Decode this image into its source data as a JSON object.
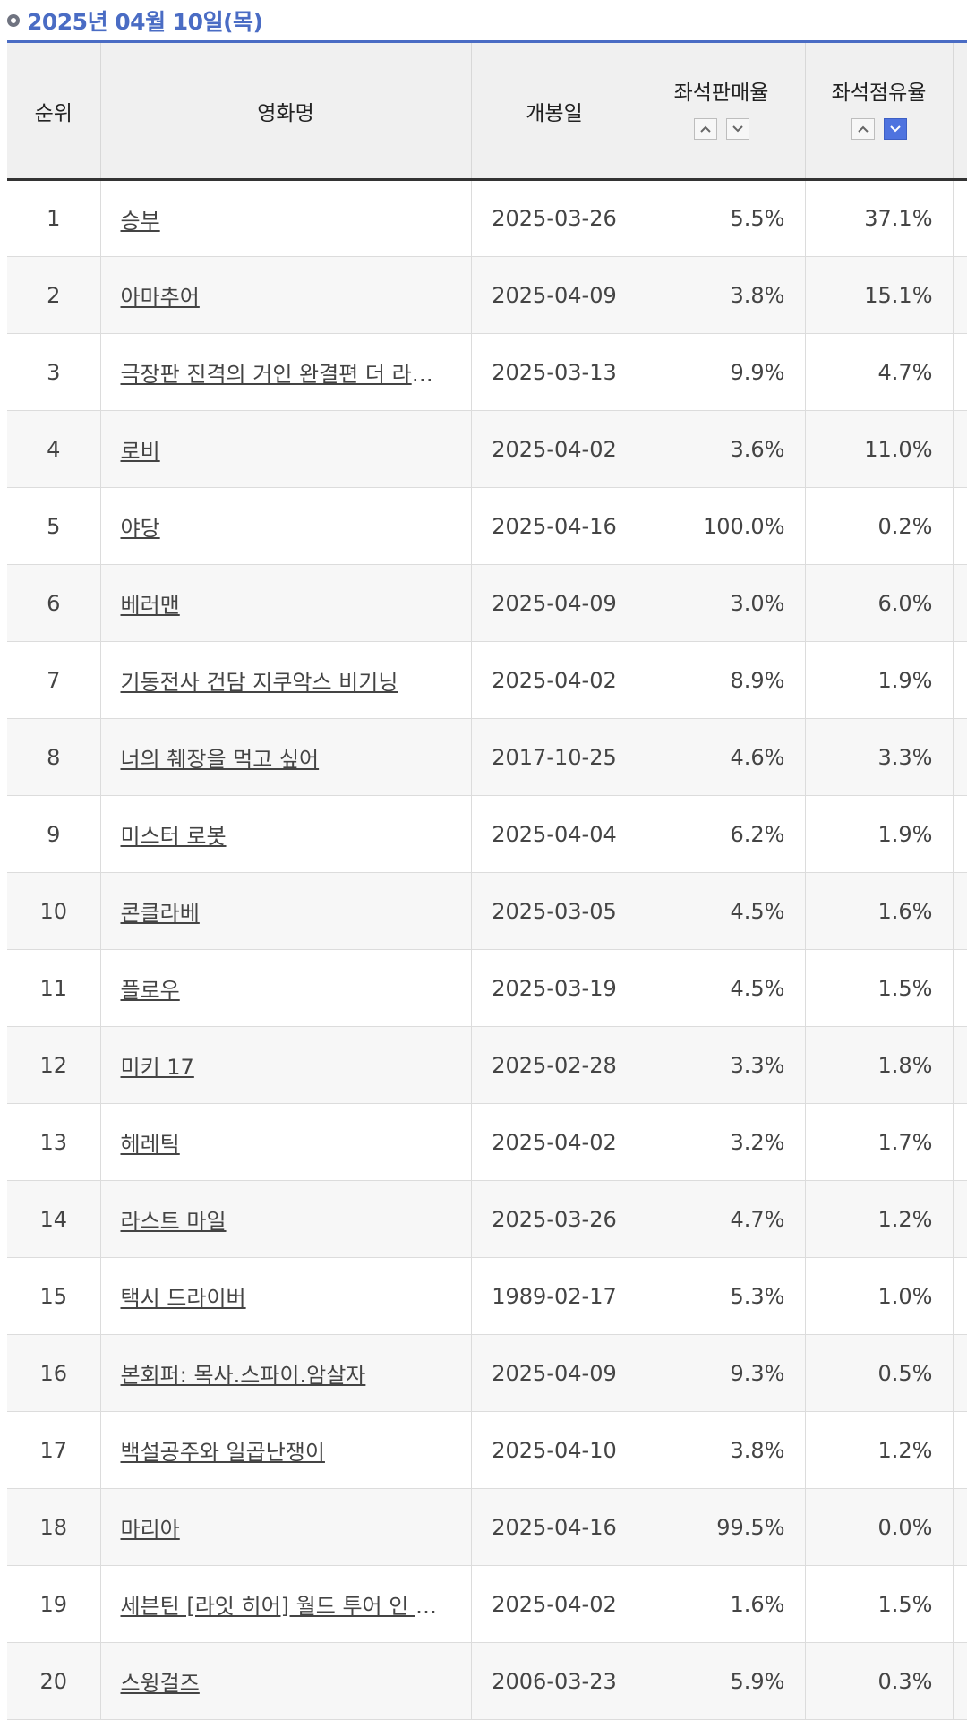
{
  "header": {
    "date_label": "2025년 04월 10일(목)"
  },
  "table": {
    "columns": {
      "rank": "순위",
      "title": "영화명",
      "open_date": "개봉일",
      "sales_rate": "좌석판매율",
      "share_rate": "좌석점유율"
    },
    "rows": [
      {
        "rank": "1",
        "title": "승부",
        "open_date": "2025-03-26",
        "sales_rate": "5.5%",
        "share_rate": "37.1%"
      },
      {
        "rank": "2",
        "title": "아마추어",
        "open_date": "2025-04-09",
        "sales_rate": "3.8%",
        "share_rate": "15.1%"
      },
      {
        "rank": "3",
        "title": "극장판 진격의 거인 완결편 더 라스…",
        "open_date": "2025-03-13",
        "sales_rate": "9.9%",
        "share_rate": "4.7%"
      },
      {
        "rank": "4",
        "title": "로비",
        "open_date": "2025-04-02",
        "sales_rate": "3.6%",
        "share_rate": "11.0%"
      },
      {
        "rank": "5",
        "title": "야당",
        "open_date": "2025-04-16",
        "sales_rate": "100.0%",
        "share_rate": "0.2%"
      },
      {
        "rank": "6",
        "title": "베러맨",
        "open_date": "2025-04-09",
        "sales_rate": "3.0%",
        "share_rate": "6.0%"
      },
      {
        "rank": "7",
        "title": "기동전사 건담 지쿠악스 비기닝",
        "open_date": "2025-04-02",
        "sales_rate": "8.9%",
        "share_rate": "1.9%"
      },
      {
        "rank": "8",
        "title": "너의 췌장을 먹고 싶어",
        "open_date": "2017-10-25",
        "sales_rate": "4.6%",
        "share_rate": "3.3%"
      },
      {
        "rank": "9",
        "title": "미스터 로봇",
        "open_date": "2025-04-04",
        "sales_rate": "6.2%",
        "share_rate": "1.9%"
      },
      {
        "rank": "10",
        "title": "콘클라베",
        "open_date": "2025-03-05",
        "sales_rate": "4.5%",
        "share_rate": "1.6%"
      },
      {
        "rank": "11",
        "title": "플로우",
        "open_date": "2025-03-19",
        "sales_rate": "4.5%",
        "share_rate": "1.5%"
      },
      {
        "rank": "12",
        "title": "미키 17",
        "open_date": "2025-02-28",
        "sales_rate": "3.3%",
        "share_rate": "1.8%"
      },
      {
        "rank": "13",
        "title": "헤레틱",
        "open_date": "2025-04-02",
        "sales_rate": "3.2%",
        "share_rate": "1.7%"
      },
      {
        "rank": "14",
        "title": "라스트 마일",
        "open_date": "2025-03-26",
        "sales_rate": "4.7%",
        "share_rate": "1.2%"
      },
      {
        "rank": "15",
        "title": "택시 드라이버",
        "open_date": "1989-02-17",
        "sales_rate": "5.3%",
        "share_rate": "1.0%"
      },
      {
        "rank": "16",
        "title": "본회퍼: 목사.스파이.암살자",
        "open_date": "2025-04-09",
        "sales_rate": "9.3%",
        "share_rate": "0.5%"
      },
      {
        "rank": "17",
        "title": "백설공주와 일곱난쟁이",
        "open_date": "2025-04-10",
        "sales_rate": "3.8%",
        "share_rate": "1.2%"
      },
      {
        "rank": "18",
        "title": "마리아",
        "open_date": "2025-04-16",
        "sales_rate": "99.5%",
        "share_rate": "0.0%"
      },
      {
        "rank": "19",
        "title": "세븐틴 [라잇 히어] 월드 투어 인 시…",
        "open_date": "2025-04-02",
        "sales_rate": "1.6%",
        "share_rate": "1.5%"
      },
      {
        "rank": "20",
        "title": "스윙걸즈",
        "open_date": "2006-03-23",
        "sales_rate": "5.9%",
        "share_rate": "0.3%"
      }
    ]
  },
  "colors": {
    "accent": "#4a6cc4",
    "active_sort": "#4e73df"
  }
}
